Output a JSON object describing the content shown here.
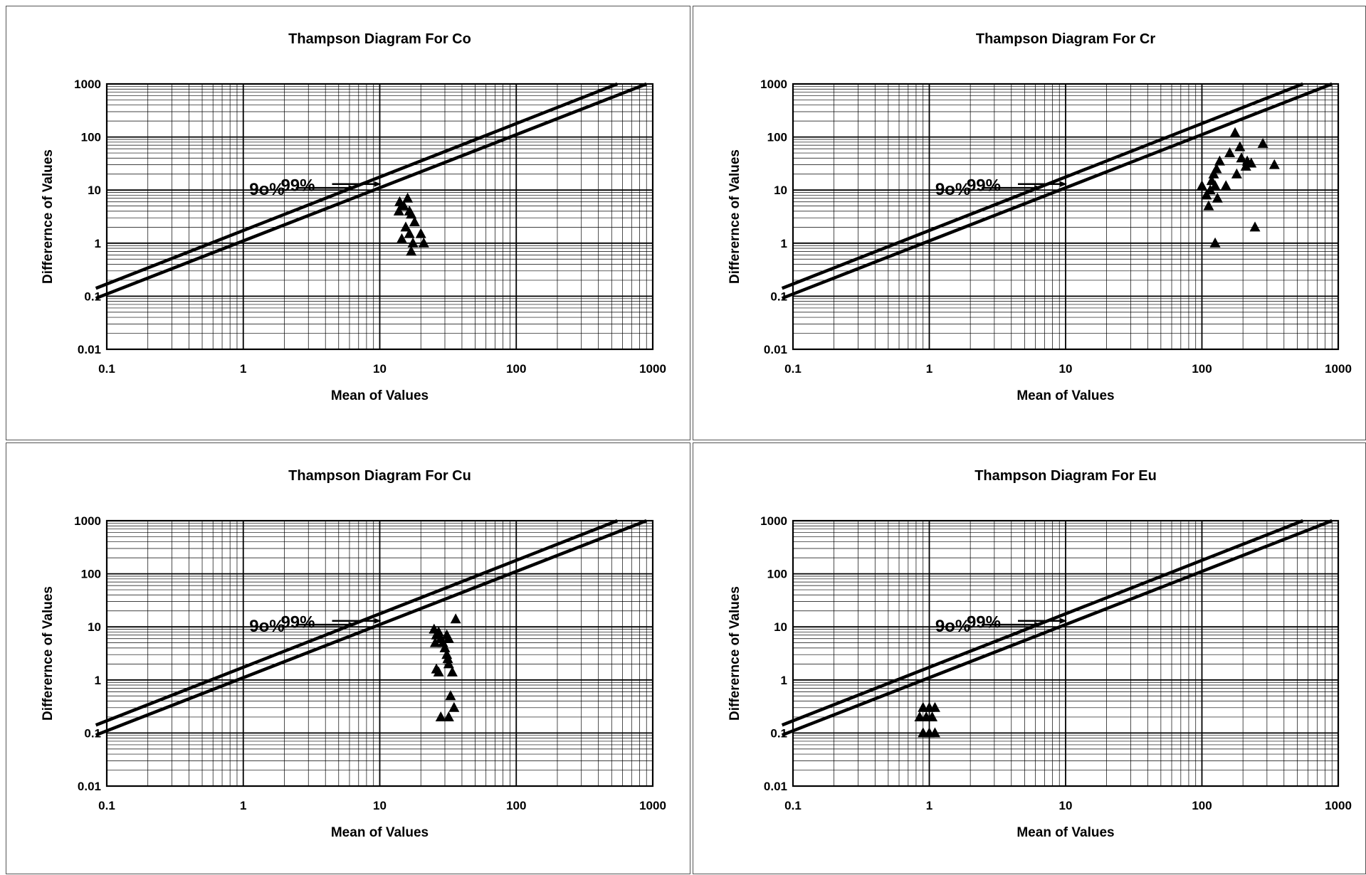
{
  "chart_data": [
    {
      "type": "scatter",
      "title": "Thampson Diagram For Co",
      "xlabel": "Mean of Values",
      "ylabel": "Differernce of Values",
      "xscale": "log",
      "yscale": "log",
      "xlim": [
        0.1,
        1000
      ],
      "ylim": [
        0.01,
        1000
      ],
      "xticks": [
        "0.1",
        "1",
        "10",
        "100",
        "1000"
      ],
      "yticks": [
        "0.01",
        "0.1",
        "1",
        "10",
        "100",
        "1000"
      ],
      "grid": true,
      "lines": [
        {
          "name": "99%",
          "x": [
            0.1,
            550
          ],
          "y": [
            0.17,
            1000
          ]
        },
        {
          "name": "9o%",
          "x": [
            0.1,
            900
          ],
          "y": [
            0.11,
            1000
          ]
        }
      ],
      "annotations": [
        {
          "text": "99%",
          "x": 10,
          "y": 13
        },
        {
          "text": "9o%",
          "x": 6.5,
          "y": 11
        }
      ],
      "points": [
        {
          "x": 14,
          "y": 6
        },
        {
          "x": 14.5,
          "y": 5
        },
        {
          "x": 13.8,
          "y": 4
        },
        {
          "x": 16,
          "y": 7
        },
        {
          "x": 15,
          "y": 5
        },
        {
          "x": 16.5,
          "y": 4
        },
        {
          "x": 17,
          "y": 3.5
        },
        {
          "x": 18,
          "y": 2.5
        },
        {
          "x": 15.5,
          "y": 2
        },
        {
          "x": 14.5,
          "y": 1.2
        },
        {
          "x": 16.5,
          "y": 1.5
        },
        {
          "x": 17.5,
          "y": 1
        },
        {
          "x": 17,
          "y": 0.7
        },
        {
          "x": 20,
          "y": 1.5
        },
        {
          "x": 21,
          "y": 1
        }
      ]
    },
    {
      "type": "scatter",
      "title": "Thampson Diagram For Cr",
      "xlabel": "Mean of Values",
      "ylabel": "Differernce of Values",
      "xscale": "log",
      "yscale": "log",
      "xlim": [
        0.1,
        1000
      ],
      "ylim": [
        0.01,
        1000
      ],
      "xticks": [
        "0.1",
        "1",
        "10",
        "100",
        "1000"
      ],
      "yticks": [
        "0.01",
        "0.1",
        "1",
        "10",
        "100",
        "1000"
      ],
      "grid": true,
      "lines": [
        {
          "name": "99%",
          "x": [
            0.1,
            550
          ],
          "y": [
            0.17,
            1000
          ]
        },
        {
          "name": "9o%",
          "x": [
            0.1,
            900
          ],
          "y": [
            0.11,
            1000
          ]
        }
      ],
      "annotations": [
        {
          "text": "99%",
          "x": 10,
          "y": 13
        },
        {
          "text": "9o%",
          "x": 6.5,
          "y": 11
        }
      ],
      "points": [
        {
          "x": 100,
          "y": 12
        },
        {
          "x": 108,
          "y": 8
        },
        {
          "x": 112,
          "y": 5
        },
        {
          "x": 115,
          "y": 10
        },
        {
          "x": 118,
          "y": 15
        },
        {
          "x": 122,
          "y": 20
        },
        {
          "x": 125,
          "y": 12
        },
        {
          "x": 130,
          "y": 7
        },
        {
          "x": 128,
          "y": 25
        },
        {
          "x": 135,
          "y": 35
        },
        {
          "x": 150,
          "y": 12
        },
        {
          "x": 160,
          "y": 50
        },
        {
          "x": 175,
          "y": 120
        },
        {
          "x": 180,
          "y": 20
        },
        {
          "x": 190,
          "y": 65
        },
        {
          "x": 195,
          "y": 40
        },
        {
          "x": 210,
          "y": 28
        },
        {
          "x": 215,
          "y": 35
        },
        {
          "x": 230,
          "y": 32
        },
        {
          "x": 245,
          "y": 2
        },
        {
          "x": 280,
          "y": 75
        },
        {
          "x": 340,
          "y": 30
        },
        {
          "x": 125,
          "y": 1
        }
      ]
    },
    {
      "type": "scatter",
      "title": "Thampson Diagram For Cu",
      "xlabel": "Mean of Values",
      "ylabel": "Differernce of Values",
      "xscale": "log",
      "yscale": "log",
      "xlim": [
        0.1,
        1000
      ],
      "ylim": [
        0.01,
        1000
      ],
      "xticks": [
        "0.1",
        "1",
        "10",
        "100",
        "1000"
      ],
      "yticks": [
        "0.01",
        "0.1",
        "1",
        "10",
        "100",
        "1000"
      ],
      "grid": true,
      "lines": [
        {
          "name": "99%",
          "x": [
            0.1,
            550
          ],
          "y": [
            0.17,
            1000
          ]
        },
        {
          "name": "9o%",
          "x": [
            0.1,
            900
          ],
          "y": [
            0.11,
            1000
          ]
        }
      ],
      "annotations": [
        {
          "text": "99%",
          "x": 10,
          "y": 13
        },
        {
          "text": "9o%",
          "x": 6.5,
          "y": 11
        }
      ],
      "points": [
        {
          "x": 25,
          "y": 9
        },
        {
          "x": 26,
          "y": 7
        },
        {
          "x": 25.5,
          "y": 5
        },
        {
          "x": 27,
          "y": 8
        },
        {
          "x": 28,
          "y": 6
        },
        {
          "x": 29,
          "y": 5
        },
        {
          "x": 30,
          "y": 4
        },
        {
          "x": 31,
          "y": 7
        },
        {
          "x": 32,
          "y": 6
        },
        {
          "x": 31,
          "y": 3
        },
        {
          "x": 31.5,
          "y": 2.5
        },
        {
          "x": 32,
          "y": 2
        },
        {
          "x": 26,
          "y": 1.6
        },
        {
          "x": 27,
          "y": 1.4
        },
        {
          "x": 34,
          "y": 1.4
        },
        {
          "x": 33,
          "y": 0.5
        },
        {
          "x": 35,
          "y": 0.3
        },
        {
          "x": 28,
          "y": 0.2
        },
        {
          "x": 32,
          "y": 0.2
        },
        {
          "x": 36,
          "y": 14
        }
      ]
    },
    {
      "type": "scatter",
      "title": "Thampson Diagram For Eu",
      "xlabel": "Mean of Values",
      "ylabel": "Differernce of Values",
      "xscale": "log",
      "yscale": "log",
      "xlim": [
        0.1,
        1000
      ],
      "ylim": [
        0.01,
        1000
      ],
      "xticks": [
        "0.1",
        "1",
        "10",
        "100",
        "1000"
      ],
      "yticks": [
        "0.01",
        "0.1",
        "1",
        "10",
        "100",
        "1000"
      ],
      "grid": true,
      "lines": [
        {
          "name": "99%",
          "x": [
            0.1,
            550
          ],
          "y": [
            0.17,
            1000
          ]
        },
        {
          "name": "9o%",
          "x": [
            0.1,
            900
          ],
          "y": [
            0.11,
            1000
          ]
        }
      ],
      "annotations": [
        {
          "text": "99%",
          "x": 10,
          "y": 13
        },
        {
          "text": "9o%",
          "x": 6.5,
          "y": 11
        }
      ],
      "points": [
        {
          "x": 0.85,
          "y": 0.2
        },
        {
          "x": 0.9,
          "y": 0.3
        },
        {
          "x": 0.95,
          "y": 0.2
        },
        {
          "x": 1.0,
          "y": 0.3
        },
        {
          "x": 1.05,
          "y": 0.2
        },
        {
          "x": 1.1,
          "y": 0.3
        },
        {
          "x": 0.9,
          "y": 0.1
        },
        {
          "x": 1.0,
          "y": 0.1
        },
        {
          "x": 1.1,
          "y": 0.1
        }
      ]
    }
  ]
}
